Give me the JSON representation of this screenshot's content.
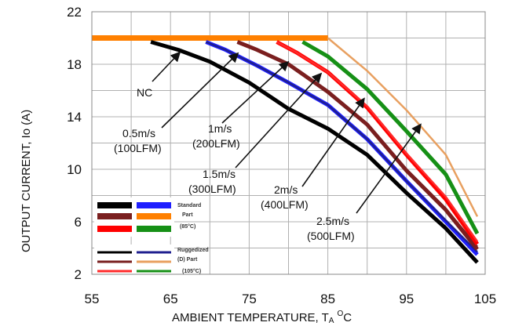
{
  "chart_data": {
    "type": "line",
    "xlabel_main": "AMBIENT TEMPERATURE, T",
    "xlabel_sub": "A",
    "xlabel_unit_sup": "O",
    "xlabel_unit": "C",
    "ylabel": "OUTPUT CURRENT, Io  (A)",
    "xlim": [
      55,
      105
    ],
    "ylim": [
      2,
      22
    ],
    "x_ticks": [
      "55",
      "65",
      "75",
      "85",
      "95",
      "105"
    ],
    "y_ticks": [
      "2",
      "6",
      "10",
      "14",
      "18",
      "22"
    ],
    "grid": true,
    "series": [
      {
        "key": "nc",
        "color": "#000000",
        "points": [
          [
            62.5,
            19.7
          ],
          [
            66,
            19.1
          ],
          [
            70,
            18.2
          ],
          [
            75,
            16.6
          ],
          [
            80,
            14.6
          ],
          [
            85,
            13.1
          ],
          [
            90,
            11.1
          ],
          [
            95,
            8.2
          ],
          [
            100,
            5.5
          ],
          [
            104,
            2.9
          ]
        ]
      },
      {
        "key": "v05_std",
        "color": "#1f1fff",
        "points": [
          [
            69.5,
            19.7
          ],
          [
            72,
            19.1
          ],
          [
            76,
            17.9
          ],
          [
            80,
            16.6
          ],
          [
            85,
            14.9
          ],
          [
            90,
            12.3
          ],
          [
            95,
            9.1
          ],
          [
            100,
            6.0
          ],
          [
            104,
            3.5
          ]
        ]
      },
      {
        "key": "v05_rug",
        "color": "#1f1f8f",
        "points": [
          [
            69.5,
            19.7
          ],
          [
            72,
            19.1
          ],
          [
            76,
            17.9
          ],
          [
            80,
            16.6
          ],
          [
            85,
            14.9
          ],
          [
            90,
            12.3
          ],
          [
            95,
            9.1
          ],
          [
            100,
            6.1
          ],
          [
            104,
            3.7
          ]
        ]
      },
      {
        "key": "v1_std",
        "color": "#7a1f1f",
        "points": [
          [
            73.5,
            19.7
          ],
          [
            76,
            19.1
          ],
          [
            80,
            18.0
          ],
          [
            85,
            15.9
          ],
          [
            90,
            13.4
          ],
          [
            95,
            9.9
          ],
          [
            100,
            6.9
          ],
          [
            104,
            3.9
          ]
        ]
      },
      {
        "key": "v1_rug",
        "color": "#7a1f1f",
        "points": [
          [
            73.5,
            19.7
          ],
          [
            76,
            19.1
          ],
          [
            80,
            18.0
          ],
          [
            85,
            15.9
          ],
          [
            90,
            13.4
          ],
          [
            95,
            10.0
          ],
          [
            100,
            7.0
          ],
          [
            104,
            4.1
          ]
        ]
      },
      {
        "key": "v15_std",
        "color": "#ff0000",
        "points": [
          [
            78.5,
            19.7
          ],
          [
            81,
            18.9
          ],
          [
            85,
            17.4
          ],
          [
            90,
            14.7
          ],
          [
            95,
            11.1
          ],
          [
            100,
            7.7
          ],
          [
            104,
            4.3
          ]
        ]
      },
      {
        "key": "v15_rug",
        "color": "#ff2a2a",
        "points": [
          [
            78.5,
            19.7
          ],
          [
            81,
            18.9
          ],
          [
            85,
            17.4
          ],
          [
            90,
            14.8
          ],
          [
            95,
            11.2
          ],
          [
            100,
            7.9
          ],
          [
            104,
            4.5
          ]
        ]
      },
      {
        "key": "v2_std",
        "color": "#169016",
        "points": [
          [
            81.8,
            19.7
          ],
          [
            85,
            18.6
          ],
          [
            90,
            16.1
          ],
          [
            95,
            12.9
          ],
          [
            100,
            9.6
          ],
          [
            104,
            5.1
          ]
        ]
      },
      {
        "key": "v2_rug",
        "color": "#169016",
        "points": [
          [
            81.8,
            19.7
          ],
          [
            85,
            18.6
          ],
          [
            90,
            16.2
          ],
          [
            95,
            13.0
          ],
          [
            100,
            9.7
          ],
          [
            104,
            5.2
          ]
        ]
      },
      {
        "key": "v25_std",
        "color": "#ff8000",
        "points": [
          [
            55,
            20
          ],
          [
            85,
            20
          ],
          [
            90,
            17.5
          ],
          [
            95,
            14.5
          ],
          [
            100,
            11.1
          ],
          [
            104,
            6.4
          ]
        ]
      },
      {
        "key": "v25_rug",
        "color": "#e8a060",
        "points": [
          [
            85,
            20
          ],
          [
            90,
            17.5
          ],
          [
            95,
            14.5
          ],
          [
            100,
            11.1
          ],
          [
            104,
            6.4
          ]
        ]
      }
    ],
    "flat_line": {
      "color": "#ff8000",
      "y": 20,
      "x_from": 55,
      "x_to": 85
    },
    "annotations": {
      "nc": "NC",
      "a05_1": "0.5m/s",
      "a05_2": "(100LFM)",
      "a1_1": "1m/s",
      "a1_2": "(200LFM)",
      "a15_1": "1.5m/s",
      "a15_2": "(300LFM)",
      "a2_1": "2m/s",
      "a2_2": "(400LFM)",
      "a25_1": "2.5m/s",
      "a25_2": "(500LFM)"
    },
    "legend": {
      "std_1": "Standard",
      "std_2": "Part",
      "std_3": "(85°C)",
      "rug_1": "Ruggedized",
      "rug_2": "(D) Part",
      "rug_3": "(105°C)",
      "std_colors": [
        [
          "#000000",
          "#1f1fff"
        ],
        [
          "#7a1f1f",
          "#ff8000"
        ],
        [
          "#ff0000",
          "#169016"
        ]
      ],
      "rug_colors": [
        [
          "#000000",
          "#1f1f8f"
        ],
        [
          "#7a1f1f",
          "#e8a060"
        ],
        [
          "#ff2a2a",
          "#169016"
        ]
      ]
    }
  }
}
